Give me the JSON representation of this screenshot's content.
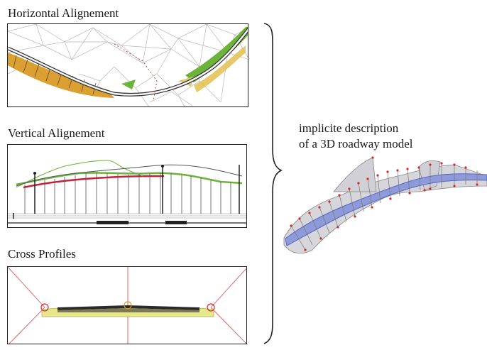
{
  "sections": {
    "horizontal": {
      "label": "Horizontal Alignement"
    },
    "vertical": {
      "label": "Vertical Alignement"
    },
    "cross": {
      "label": "Cross Profiles"
    }
  },
  "description": {
    "line1": "implicite description",
    "line2": "of a 3D roadway model"
  },
  "colors": {
    "road_fill": "#8f9ad9",
    "road_edge": "#5566cc",
    "surface": "#d7d7db",
    "marker": "#d42a2a",
    "green": "#6cb33a",
    "orange": "#d8961c",
    "crown": "#c8203a"
  }
}
